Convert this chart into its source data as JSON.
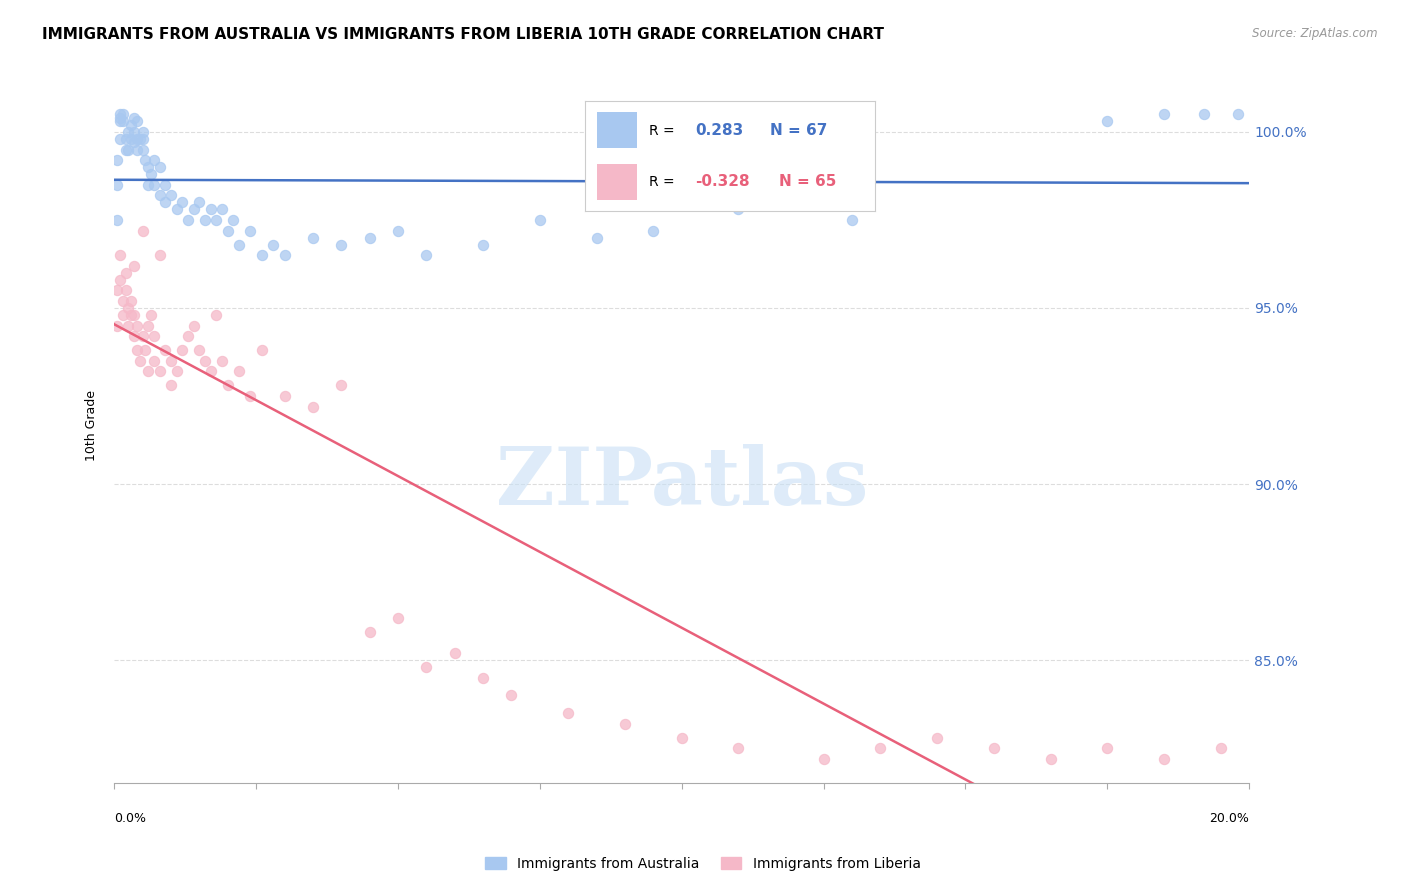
{
  "title": "IMMIGRANTS FROM AUSTRALIA VS IMMIGRANTS FROM LIBERIA 10TH GRADE CORRELATION CHART",
  "source": "Source: ZipAtlas.com",
  "ylabel": "10th Grade",
  "y_ticks": [
    85.0,
    90.0,
    95.0,
    100.0
  ],
  "y_tick_labels": [
    "85.0%",
    "90.0%",
    "95.0%",
    "100.0%"
  ],
  "x_min": 0.0,
  "x_max": 20.0,
  "y_min": 81.5,
  "y_max": 101.8,
  "australia_color": "#A8C8F0",
  "liberia_color": "#F5B8C8",
  "australia_line_color": "#4472C4",
  "liberia_line_color": "#E8607A",
  "australia_R": 0.283,
  "australia_N": 67,
  "liberia_R": -0.328,
  "liberia_N": 65,
  "australia_x": [
    0.05,
    0.05,
    0.05,
    0.1,
    0.1,
    0.1,
    0.1,
    0.15,
    0.15,
    0.2,
    0.2,
    0.25,
    0.25,
    0.3,
    0.3,
    0.35,
    0.35,
    0.35,
    0.4,
    0.4,
    0.4,
    0.45,
    0.5,
    0.5,
    0.5,
    0.55,
    0.6,
    0.6,
    0.65,
    0.7,
    0.7,
    0.8,
    0.8,
    0.9,
    0.9,
    1.0,
    1.1,
    1.2,
    1.3,
    1.4,
    1.5,
    1.6,
    1.7,
    1.8,
    1.9,
    2.0,
    2.1,
    2.2,
    2.4,
    2.6,
    2.8,
    3.0,
    3.5,
    4.0,
    4.5,
    5.0,
    5.5,
    6.5,
    7.5,
    8.5,
    9.5,
    11.0,
    13.0,
    17.5,
    18.5,
    19.2,
    19.8
  ],
  "australia_y": [
    97.5,
    98.5,
    99.2,
    99.8,
    100.3,
    100.4,
    100.5,
    100.3,
    100.5,
    99.5,
    99.8,
    99.5,
    100.0,
    99.8,
    100.2,
    100.4,
    99.7,
    100.0,
    99.5,
    100.3,
    99.8,
    99.8,
    99.5,
    99.8,
    100.0,
    99.2,
    98.5,
    99.0,
    98.8,
    98.5,
    99.2,
    98.2,
    99.0,
    98.0,
    98.5,
    98.2,
    97.8,
    98.0,
    97.5,
    97.8,
    98.0,
    97.5,
    97.8,
    97.5,
    97.8,
    97.2,
    97.5,
    96.8,
    97.2,
    96.5,
    96.8,
    96.5,
    97.0,
    96.8,
    97.0,
    97.2,
    96.5,
    96.8,
    97.5,
    97.0,
    97.2,
    97.8,
    97.5,
    100.3,
    100.5,
    100.5,
    100.5
  ],
  "liberia_x": [
    0.05,
    0.05,
    0.1,
    0.1,
    0.15,
    0.15,
    0.2,
    0.2,
    0.25,
    0.25,
    0.3,
    0.3,
    0.35,
    0.35,
    0.35,
    0.4,
    0.4,
    0.45,
    0.5,
    0.5,
    0.55,
    0.6,
    0.6,
    0.65,
    0.7,
    0.7,
    0.8,
    0.8,
    0.9,
    1.0,
    1.0,
    1.1,
    1.2,
    1.3,
    1.4,
    1.5,
    1.6,
    1.7,
    1.8,
    1.9,
    2.0,
    2.2,
    2.4,
    2.6,
    3.0,
    3.5,
    4.0,
    4.5,
    5.0,
    5.5,
    6.0,
    6.5,
    7.0,
    8.0,
    9.0,
    10.0,
    11.0,
    12.5,
    13.5,
    14.5,
    15.5,
    16.5,
    17.5,
    18.5,
    19.5
  ],
  "liberia_y": [
    94.5,
    95.5,
    95.8,
    96.5,
    94.8,
    95.2,
    95.5,
    96.0,
    94.5,
    95.0,
    94.8,
    95.2,
    94.2,
    94.8,
    96.2,
    93.8,
    94.5,
    93.5,
    94.2,
    97.2,
    93.8,
    94.5,
    93.2,
    94.8,
    93.5,
    94.2,
    93.2,
    96.5,
    93.8,
    92.8,
    93.5,
    93.2,
    93.8,
    94.2,
    94.5,
    93.8,
    93.5,
    93.2,
    94.8,
    93.5,
    92.8,
    93.2,
    92.5,
    93.8,
    92.5,
    92.2,
    92.8,
    85.8,
    86.2,
    84.8,
    85.2,
    84.5,
    84.0,
    83.5,
    83.2,
    82.8,
    82.5,
    82.2,
    82.5,
    82.8,
    82.5,
    82.2,
    82.5,
    82.2,
    82.5
  ],
  "watermark_text": "ZIPatlas",
  "background_color": "#FFFFFF",
  "grid_color": "#DDDDDD",
  "title_fontsize": 11,
  "axis_label_fontsize": 9,
  "tick_fontsize": 9,
  "legend_fontsize": 11
}
